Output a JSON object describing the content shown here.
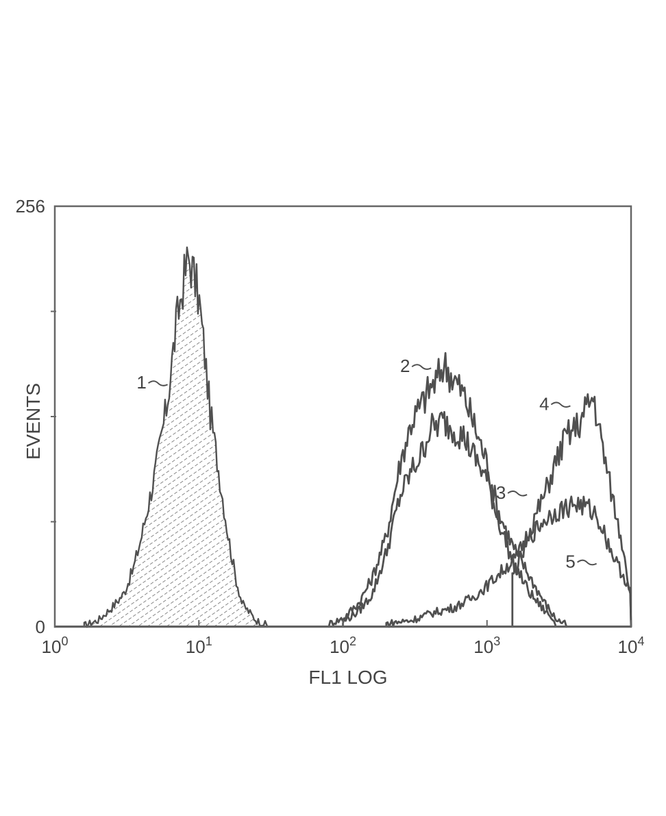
{
  "chart_data": {
    "type": "area",
    "xlabel": "FL1 LOG",
    "ylabel": "EVENTS",
    "x_scale": "log",
    "xlim": [
      1,
      10000
    ],
    "ylim": [
      0,
      256
    ],
    "x_ticks": [
      {
        "value": 1,
        "base": "10",
        "exp": "0"
      },
      {
        "value": 10,
        "base": "10",
        "exp": "1"
      },
      {
        "value": 100,
        "base": "10",
        "exp": "2"
      },
      {
        "value": 1000,
        "base": "10",
        "exp": "3"
      },
      {
        "value": 10000,
        "base": "10",
        "exp": "4"
      }
    ],
    "y_tick_labels": [
      {
        "value": 0,
        "label": "0"
      },
      {
        "value": 256,
        "label": "256"
      }
    ],
    "y_minor_ticks": [
      64,
      128,
      192
    ],
    "grid": false,
    "series": [
      {
        "label": "1",
        "fill": "hatched",
        "x": [
          1.6,
          2,
          2.5,
          3,
          3.5,
          4,
          5,
          6,
          7,
          8,
          8.5,
          9,
          10,
          11,
          12,
          14,
          16,
          18,
          20,
          25,
          30
        ],
        "y": [
          1,
          4,
          12,
          20,
          35,
          55,
          95,
          135,
          185,
          215,
          225,
          218,
          200,
          165,
          130,
          90,
          55,
          30,
          14,
          4,
          1
        ]
      },
      {
        "label": "2",
        "fill": "none",
        "x": [
          80,
          100,
          130,
          160,
          200,
          250,
          300,
          350,
          400,
          450,
          500,
          600,
          700,
          800,
          1000,
          1200,
          1500,
          2000,
          2500,
          3000,
          3600
        ],
        "y": [
          2,
          5,
          15,
          30,
          55,
          100,
          125,
          135,
          145,
          150,
          160,
          150,
          140,
          125,
          100,
          70,
          50,
          30,
          15,
          5,
          1
        ]
      },
      {
        "label": "3",
        "fill": "none",
        "x": [
          100,
          130,
          160,
          200,
          250,
          300,
          350,
          400,
          500,
          600,
          700,
          800,
          1000,
          1200,
          1500,
          2000,
          2500,
          3000
        ],
        "y": [
          3,
          10,
          20,
          45,
          80,
          95,
          105,
          120,
          125,
          120,
          115,
          105,
          90,
          65,
          40,
          20,
          10,
          3
        ]
      },
      {
        "label": "4",
        "fill": "none",
        "x": [
          200,
          300,
          400,
          600,
          800,
          1000,
          1300,
          1600,
          2000,
          2500,
          3000,
          3500,
          4000,
          4500,
          5000,
          5500,
          6000,
          7000,
          8000,
          9000,
          10000
        ],
        "y": [
          2,
          4,
          8,
          12,
          18,
          25,
          35,
          42,
          60,
          80,
          100,
          115,
          120,
          125,
          135,
          140,
          120,
          90,
          65,
          45,
          15
        ]
      },
      {
        "label": "5",
        "fill": "none",
        "x": [
          1500,
          2000,
          2500,
          3000,
          3500,
          4000,
          4500,
          5000,
          5500,
          6000,
          7000,
          8000,
          9000,
          10000
        ],
        "y": [
          30,
          55,
          65,
          70,
          72,
          75,
          74,
          72,
          70,
          65,
          50,
          38,
          30,
          20
        ]
      }
    ],
    "annotations": [
      {
        "text": "1",
        "x": 4.0,
        "y": 145
      },
      {
        "text": "2",
        "x": 270,
        "y": 155
      },
      {
        "text": "3",
        "x": 1250,
        "y": 78
      },
      {
        "text": "4",
        "x": 2500,
        "y": 132
      },
      {
        "text": "5",
        "x": 3800,
        "y": 36
      }
    ]
  }
}
